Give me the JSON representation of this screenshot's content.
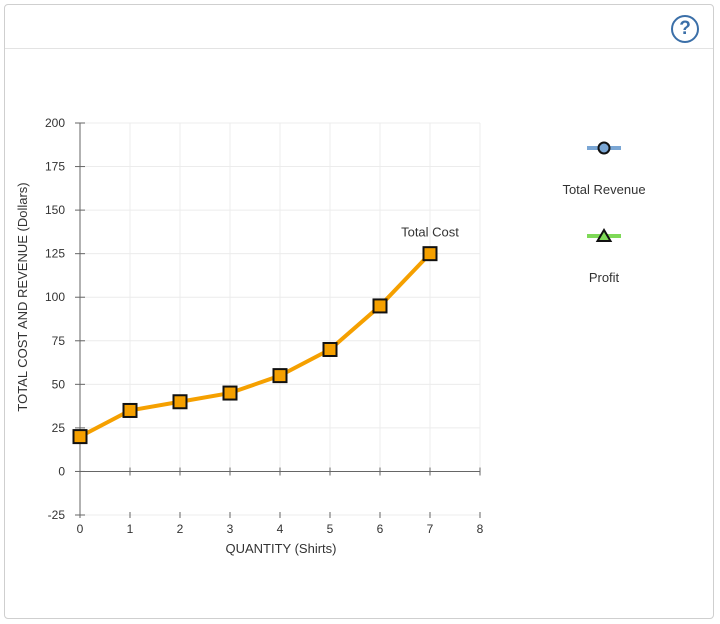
{
  "help": {
    "label": "?"
  },
  "chart_data": {
    "type": "line",
    "xlabel": "QUANTITY (Shirts)",
    "ylabel": "TOTAL COST AND REVENUE (Dollars)",
    "xlim": [
      0,
      8
    ],
    "ylim": [
      -25,
      200
    ],
    "x_ticks": [
      0,
      1,
      2,
      3,
      4,
      5,
      6,
      7,
      8
    ],
    "y_ticks": [
      -25,
      0,
      25,
      50,
      75,
      100,
      125,
      150,
      175,
      200
    ],
    "grid": true,
    "series": [
      {
        "name": "Total Cost",
        "color": "#f5a000",
        "marker": "square",
        "x": [
          0,
          1,
          2,
          3,
          4,
          5,
          6,
          7
        ],
        "y": [
          20,
          35,
          40,
          45,
          55,
          70,
          95,
          125
        ]
      }
    ],
    "legend": {
      "placement": "right",
      "items": [
        {
          "label": "Total Revenue",
          "color": "#7aa6d4",
          "marker": "circle"
        },
        {
          "label": "Profit",
          "color": "#7ed957",
          "marker": "triangle"
        }
      ]
    }
  }
}
